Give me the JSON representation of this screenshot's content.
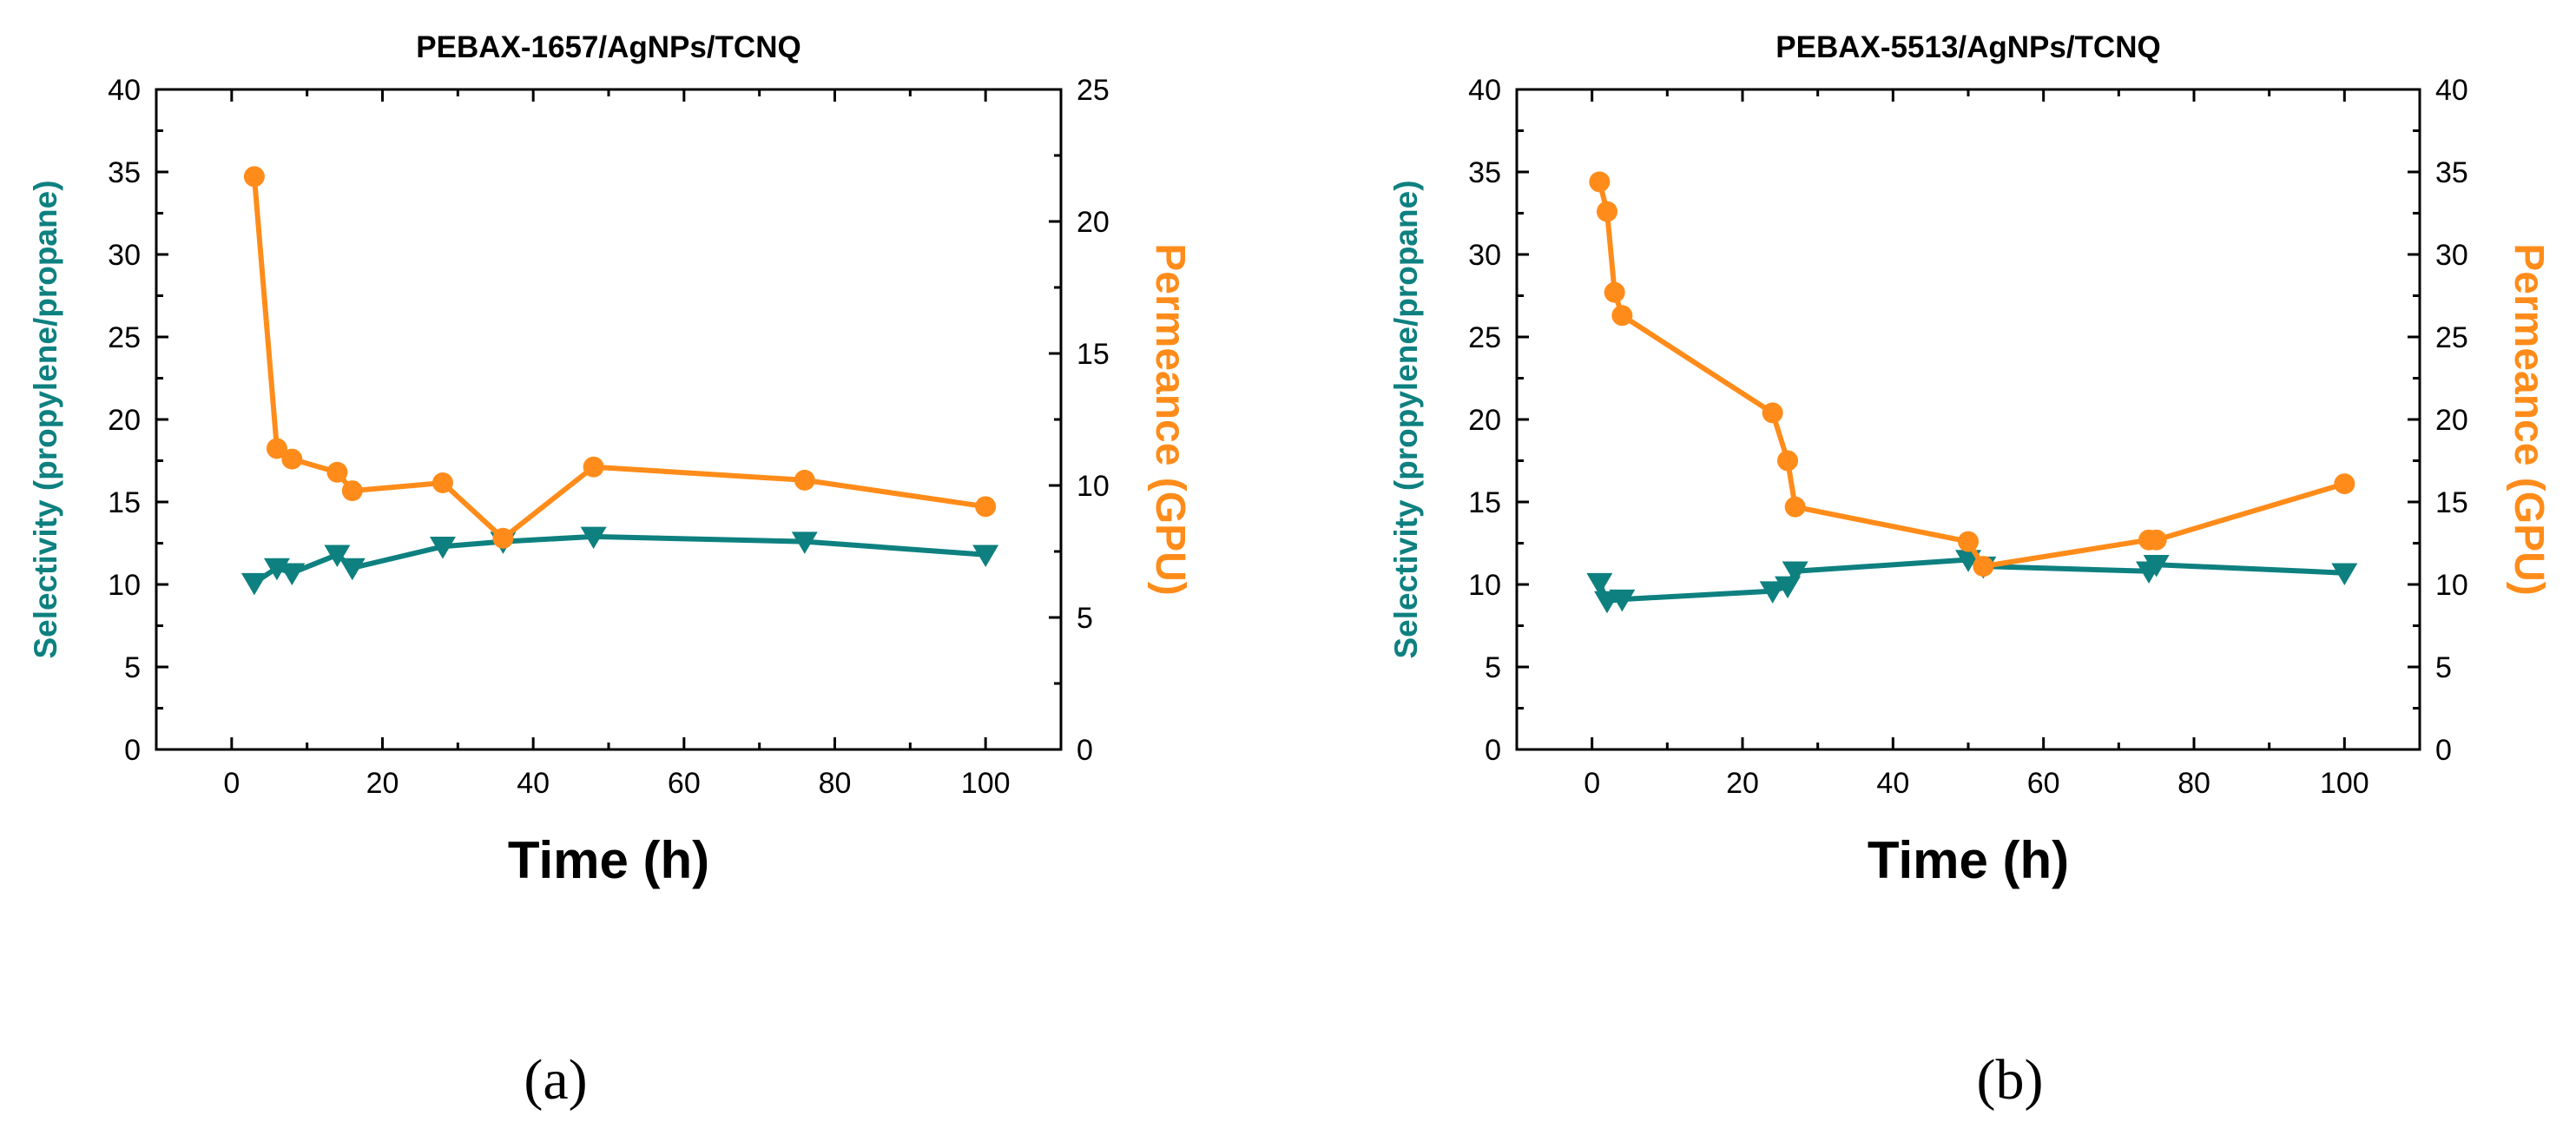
{
  "colors": {
    "selectivity": "#0e8080",
    "permeance": "#ff8c1a",
    "axis": "#000000"
  },
  "chart_data": [
    {
      "type": "line",
      "panel": "a",
      "caption": "(a)",
      "title": "PEBAX-1657/AgNPs/TCNQ",
      "xlabel": "Time (h)",
      "ylabel": "Selectivity (propylene/propane)",
      "y2label": "Permeance (GPU)",
      "xlim": [
        -10,
        110
      ],
      "ylim": [
        0,
        40
      ],
      "y2lim": [
        0,
        25
      ],
      "xticks": [
        0,
        20,
        40,
        60,
        80,
        100
      ],
      "yticks": [
        0,
        5,
        10,
        15,
        20,
        25,
        30,
        35,
        40
      ],
      "y2ticks": [
        0,
        5,
        10,
        15,
        20,
        25
      ],
      "series": [
        {
          "name": "Selectivity",
          "axis": "left",
          "marker": "triangle-down",
          "x": [
            3,
            6,
            8,
            14,
            16,
            28,
            36,
            48,
            76,
            100
          ],
          "values": [
            10.1,
            11.0,
            10.7,
            11.8,
            11.0,
            12.3,
            12.6,
            12.9,
            12.6,
            11.8
          ]
        },
        {
          "name": "Permeance",
          "axis": "right",
          "marker": "circle",
          "x": [
            3,
            6,
            8,
            14,
            16,
            28,
            36,
            48,
            76,
            100
          ],
          "values": [
            21.7,
            11.4,
            11.0,
            10.5,
            9.8,
            10.1,
            8.0,
            10.7,
            10.2,
            9.2
          ]
        }
      ]
    },
    {
      "type": "line",
      "panel": "b",
      "caption": "(b)",
      "title": "PEBAX-5513/AgNPs/TCNQ",
      "xlabel": "Time (h)",
      "ylabel": "Selectivity (propylene/propane)",
      "y2label": "Permeance (GPU)",
      "xlim": [
        -10,
        110
      ],
      "ylim": [
        0,
        40
      ],
      "y2lim": [
        0,
        40
      ],
      "xticks": [
        0,
        20,
        40,
        60,
        80,
        100
      ],
      "yticks": [
        0,
        5,
        10,
        15,
        20,
        25,
        30,
        35,
        40
      ],
      "y2ticks": [
        0,
        5,
        10,
        15,
        20,
        25,
        30,
        35,
        40
      ],
      "series": [
        {
          "name": "Selectivity",
          "axis": "left",
          "marker": "triangle-down",
          "x": [
            1,
            2,
            4,
            24,
            26,
            27,
            50,
            52,
            74,
            75,
            100
          ],
          "values": [
            10.1,
            9.0,
            9.1,
            9.6,
            9.9,
            10.8,
            11.5,
            11.1,
            10.8,
            11.2,
            10.7
          ]
        },
        {
          "name": "Permeance",
          "axis": "right",
          "marker": "circle",
          "x": [
            1,
            2,
            3,
            4,
            24,
            26,
            27,
            50,
            52,
            74,
            75,
            100
          ],
          "values": [
            34.4,
            32.6,
            27.7,
            26.3,
            20.4,
            17.5,
            14.7,
            12.6,
            11.1,
            12.7,
            12.7,
            16.1
          ]
        }
      ]
    }
  ]
}
